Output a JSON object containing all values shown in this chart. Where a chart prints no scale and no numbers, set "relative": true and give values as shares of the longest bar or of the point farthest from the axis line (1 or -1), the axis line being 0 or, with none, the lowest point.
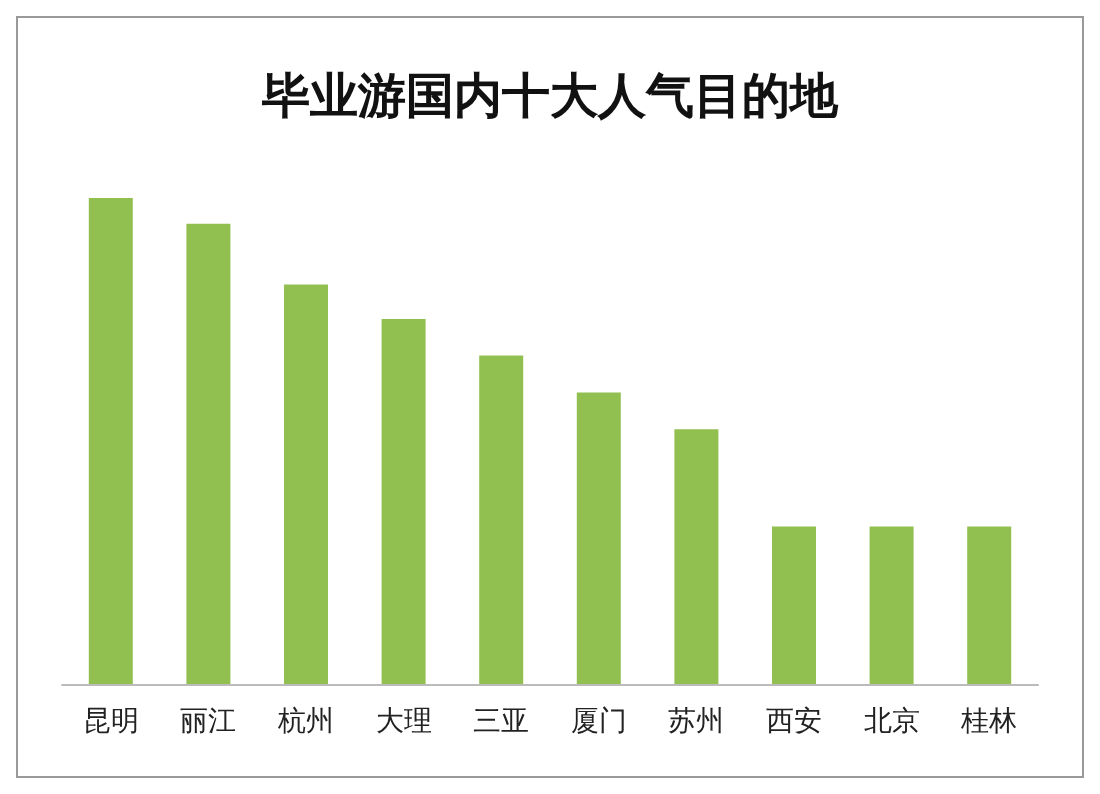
{
  "chart_data": {
    "type": "bar",
    "title": "毕业游国内十大人气目的地",
    "categories": [
      "昆明",
      "丽江",
      "杭州",
      "大理",
      "三亚",
      "厦门",
      "苏州",
      "西安",
      "北京",
      "桂林"
    ],
    "values": [
      1,
      0.947,
      0.822,
      0.751,
      0.676,
      0.6,
      0.524,
      0.324,
      0.324,
      0.324
    ],
    "color": "#92c050",
    "relative": true
  }
}
